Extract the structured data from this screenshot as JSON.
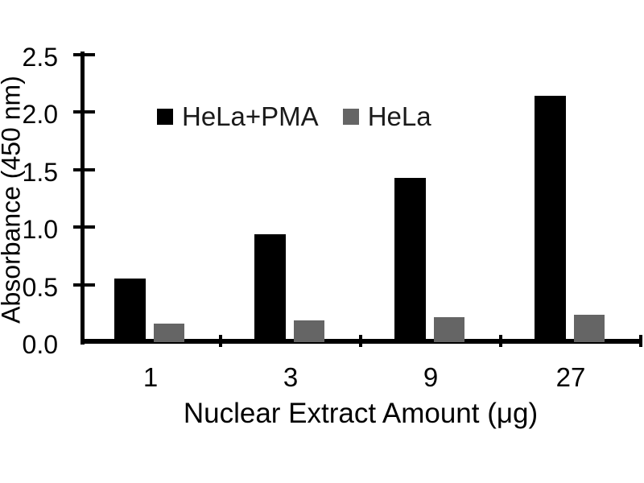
{
  "chart_data": {
    "type": "bar",
    "title": "",
    "categories": [
      "1",
      "3",
      "9",
      "27"
    ],
    "series": [
      {
        "name": "HeLa+PMA",
        "color": "#000000",
        "values": [
          0.55,
          0.94,
          1.43,
          2.14
        ]
      },
      {
        "name": "HeLa",
        "color": "#656565",
        "values": [
          0.16,
          0.19,
          0.22,
          0.24
        ]
      }
    ],
    "xlabel": "Nuclear Extract Amount (μg)",
    "ylabel": "Absorbance (450 nm)",
    "ylim": [
      0,
      2.5
    ],
    "ytick_step": 0.5,
    "ytick_labels": [
      "0.0",
      "0.5",
      "1.0",
      "1.5",
      "2.0",
      "2.5"
    ],
    "legend_position": "top-left-inside",
    "grid": false,
    "background_color": "#ffffff",
    "axis_color": "#000000"
  }
}
